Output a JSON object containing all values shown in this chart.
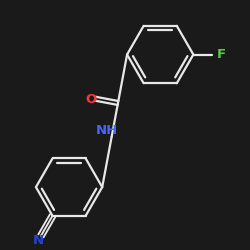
{
  "bg_color": "#1a1a1a",
  "bond_color": "#e8e8e8",
  "bond_width": 1.6,
  "atom_colors": {
    "N_amide": "#4466ff",
    "N_cyano": "#2244dd",
    "O": "#ff3333",
    "F": "#55cc44",
    "C": "#e8e8e8"
  },
  "font_size": 9.5
}
